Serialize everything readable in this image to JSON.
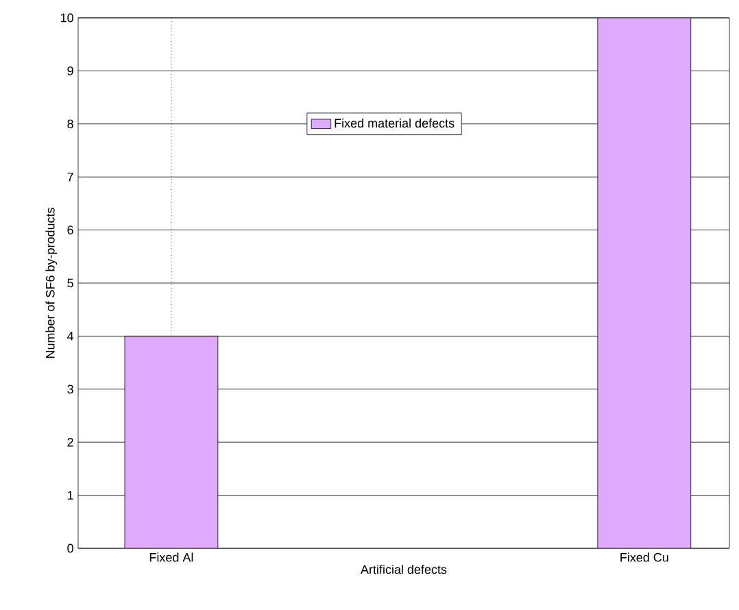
{
  "chart_data": {
    "type": "bar",
    "xlabel": "Artificial defects",
    "ylabel": "Number of SF6 by-products",
    "categories": [
      "Fixed Al",
      "Fixed Cu"
    ],
    "series": [
      {
        "name": "Fixed material defects",
        "color": "#dfa9fd",
        "values": [
          4,
          10
        ]
      }
    ],
    "ylim": [
      0,
      10
    ],
    "yticks": [
      0,
      1,
      2,
      3,
      4,
      5,
      6,
      7,
      8,
      9,
      10
    ],
    "grid": true,
    "legend": "top"
  }
}
